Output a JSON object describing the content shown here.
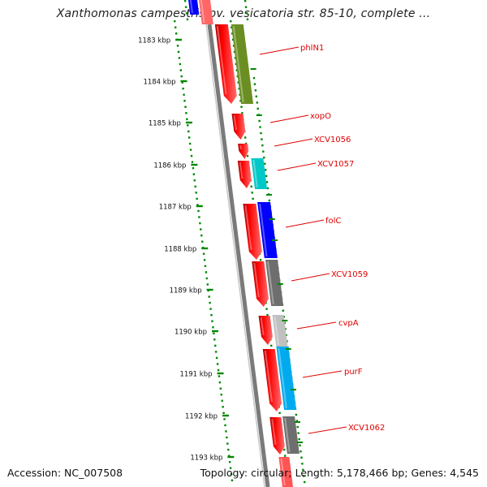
{
  "title": "Xanthomonas campestris pv. vesicatoria str. 85-10, complete ...",
  "footer": {
    "accession": "Accession: NC_007508",
    "summary": "Topology: circular; Length: 5,178,466 bp; Genes: 4,545"
  },
  "ruler_ticks": [
    "1183 kbp",
    "1184 kbp",
    "1185 kbp",
    "1186 kbp",
    "1187 kbp",
    "1188 kbp",
    "1189 kbp",
    "1190 kbp",
    "1191 kbp",
    "1192 kbp",
    "1193 kbp"
  ],
  "colors": {
    "label": "#e00000",
    "gene_red": "#ff0000",
    "backbone": "#808080",
    "dotted": "#008800"
  },
  "genes": [
    {
      "name": "",
      "color": "#0000ff",
      "leader": false
    },
    {
      "name": "phlN1",
      "color": "#6b8e23",
      "leader": true
    },
    {
      "name": "xopO",
      "color": "#ff0000",
      "leader": true
    },
    {
      "name": "XCV1056",
      "color": "#ff0000",
      "leader": true
    },
    {
      "name": "XCV1057",
      "color": "#00c8c8",
      "leader": true
    },
    {
      "name": "folC",
      "color": "#0000ff",
      "leader": true
    },
    {
      "name": "XCV1059",
      "color": "#6e6e6e",
      "leader": true
    },
    {
      "name": "cvpA",
      "color": "#c0c0c0",
      "leader": true
    },
    {
      "name": "purF",
      "color": "#00aaee",
      "leader": true
    },
    {
      "name": "XCV1062",
      "color": "#6e6e6e",
      "leader": true
    }
  ]
}
